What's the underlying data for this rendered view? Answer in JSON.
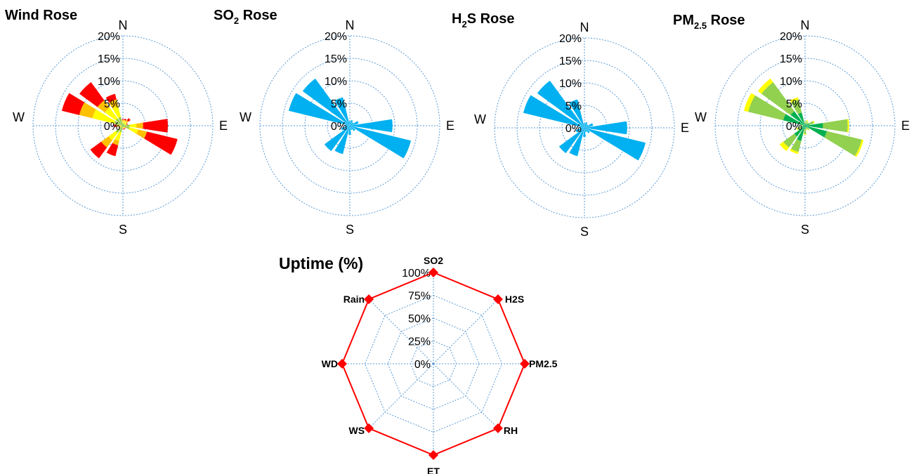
{
  "chart_data": [
    {
      "type": "wind_rose",
      "title": "Wind Rose",
      "title_sub": "",
      "title_suffix": "",
      "directions": [
        "N",
        "NNE",
        "NE",
        "ENE",
        "E",
        "ESE",
        "SE",
        "SSE",
        "S",
        "SSW",
        "SW",
        "WSW",
        "W",
        "WNW",
        "NW",
        "NNW"
      ],
      "compass_labels": {
        "N": "N",
        "E": "E",
        "S": "S",
        "W": "W"
      },
      "radial_ticks": [
        "0%",
        "5%",
        "10%",
        "15%",
        "20%"
      ],
      "rmax": 20,
      "bin_colors": [
        "#8DC63F",
        "#FFFF00",
        "#FFC000",
        "#FF0000"
      ],
      "stacks": [
        [
          0.5,
          0.5,
          0.3,
          0.2
        ],
        [
          0.5,
          0.5,
          0.3,
          0.3
        ],
        [
          0.5,
          0.5,
          0.5,
          0.6
        ],
        [
          0.4,
          0.3,
          0.2,
          0.2
        ],
        [
          1.5,
          1.5,
          1.5,
          5.5
        ],
        [
          1.5,
          2.0,
          2.0,
          7.0
        ],
        [
          0.3,
          0.2,
          0.2,
          0.1
        ],
        [
          0.3,
          0.2,
          0.2,
          0.2
        ],
        [
          0.3,
          0.2,
          0.1,
          0.1
        ],
        [
          1.5,
          2.0,
          1.0,
          2.5
        ],
        [
          2.0,
          2.0,
          2.0,
          3.0
        ],
        [
          0.3,
          0.3,
          0.2,
          0.2
        ],
        [
          0.5,
          0.5,
          0.5,
          0.5
        ],
        [
          2.0,
          5.0,
          3.0,
          4.0
        ],
        [
          2.0,
          3.0,
          2.0,
          5.0
        ],
        [
          2.0,
          2.5,
          1.5,
          1.3
        ]
      ]
    },
    {
      "type": "wind_rose",
      "title": "SO",
      "title_sub": "2",
      "title_suffix": " Rose",
      "directions": [
        "N",
        "NNE",
        "NE",
        "ENE",
        "E",
        "ESE",
        "SE",
        "SSE",
        "S",
        "SSW",
        "SW",
        "WSW",
        "W",
        "WNW",
        "NW",
        "NNW"
      ],
      "compass_labels": {
        "N": "N",
        "E": "E",
        "S": "S",
        "W": "W"
      },
      "radial_ticks": [
        "0%",
        "5%",
        "10%",
        "15%",
        "20%"
      ],
      "rmax": 20,
      "bin_colors": [
        "#00B0F0"
      ],
      "stacks": [
        [
          1.0
        ],
        [
          1.3
        ],
        [
          1.0
        ],
        [
          2.0
        ],
        [
          9.5
        ],
        [
          14.0
        ],
        [
          1.5
        ],
        [
          1.0
        ],
        [
          2.0
        ],
        [
          6.5
        ],
        [
          7.0
        ],
        [
          2.0
        ],
        [
          1.0
        ],
        [
          14.0
        ],
        [
          13.0
        ],
        [
          6.5
        ]
      ]
    },
    {
      "type": "wind_rose",
      "title": "H",
      "title_sub": "2",
      "title_suffix": "S Rose",
      "directions": [
        "N",
        "NNE",
        "NE",
        "ENE",
        "E",
        "ESE",
        "SE",
        "SSE",
        "S",
        "SSW",
        "SW",
        "WSW",
        "W",
        "WNW",
        "NW",
        "NNW"
      ],
      "compass_labels": {
        "N": "N",
        "E": "E",
        "S": "S",
        "W": "W"
      },
      "radial_ticks": [
        "0%",
        "5%",
        "10%",
        "15%",
        "20%"
      ],
      "rmax": 20,
      "bin_colors": [
        "#00B0F0"
      ],
      "stacks": [
        [
          1.0
        ],
        [
          1.3
        ],
        [
          1.0
        ],
        [
          2.0
        ],
        [
          9.5
        ],
        [
          14.0
        ],
        [
          1.5
        ],
        [
          1.0
        ],
        [
          2.0
        ],
        [
          6.5
        ],
        [
          7.0
        ],
        [
          2.0
        ],
        [
          1.0
        ],
        [
          14.0
        ],
        [
          13.0
        ],
        [
          6.5
        ]
      ]
    },
    {
      "type": "wind_rose",
      "title": "PM",
      "title_sub": "2.5",
      "title_suffix": " Rose",
      "directions": [
        "N",
        "NNE",
        "NE",
        "ENE",
        "E",
        "ESE",
        "SE",
        "SSE",
        "S",
        "SSW",
        "SW",
        "WSW",
        "W",
        "WNW",
        "NW",
        "NNW"
      ],
      "compass_labels": {
        "N": "N",
        "E": "E",
        "S": "S",
        "W": "W"
      },
      "radial_ticks": [
        "0%",
        "5%",
        "10%",
        "15%",
        "20%"
      ],
      "rmax": 20,
      "bin_colors": [
        "#00B050",
        "#92D050",
        "#FFFF00"
      ],
      "stacks": [
        [
          0.4,
          0.4,
          0.1
        ],
        [
          0.5,
          0.6,
          0.2
        ],
        [
          0.4,
          0.5,
          0.1
        ],
        [
          1.0,
          1.0,
          0.2
        ],
        [
          4.0,
          5.5,
          0.3
        ],
        [
          5.0,
          8.0,
          0.4
        ],
        [
          0.6,
          0.6,
          0.1
        ],
        [
          0.4,
          0.5,
          0.1
        ],
        [
          0.8,
          1.0,
          0.2
        ],
        [
          3.5,
          2.5,
          0.5
        ],
        [
          3.0,
          3.0,
          1.0
        ],
        [
          0.8,
          1.0,
          0.2
        ],
        [
          0.4,
          0.4,
          0.2
        ],
        [
          5.0,
          8.0,
          1.0
        ],
        [
          4.0,
          8.0,
          1.0
        ],
        [
          3.0,
          3.0,
          0.5
        ]
      ]
    },
    {
      "type": "radar",
      "title": "Uptime (%)",
      "categories": [
        "SO2",
        "H2S",
        "PM2.5",
        "RH",
        "ET",
        "WS",
        "WD",
        "Rain"
      ],
      "series": [
        {
          "values": [
            100,
            100,
            100,
            100,
            100,
            100,
            100,
            100
          ]
        }
      ],
      "radial_ticks": [
        "0%",
        "25%",
        "50%",
        "75%",
        "100%"
      ],
      "rmax": 100,
      "line_color": "#FF0000",
      "marker_color": "#FF0000"
    }
  ]
}
